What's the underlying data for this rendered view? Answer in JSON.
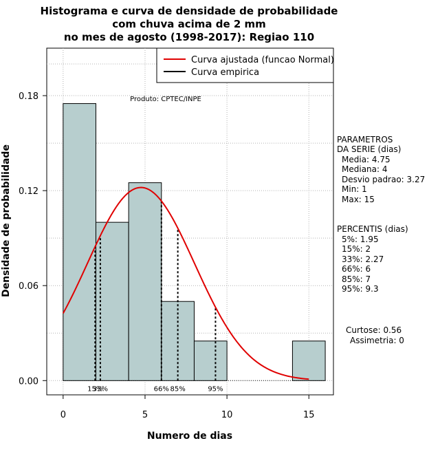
{
  "chart_data": {
    "type": "bar",
    "title_lines": [
      "Histograma e curva de densidade de probabilidade",
      "com chuva acima de 2 mm",
      "no mes de agosto (1998-2017): Regiao 110"
    ],
    "xlabel": "Numero de dias",
    "ylabel": "Densidade de probabilidade",
    "xlim": [
      -1,
      16.5
    ],
    "ylim": [
      -0.009,
      0.21
    ],
    "x_ticks": [
      0,
      5,
      10,
      15
    ],
    "y_ticks": [
      0.0,
      0.06,
      0.12,
      0.18
    ],
    "y_tick_labels": [
      "0.00",
      "0.06",
      "0.12",
      "0.18"
    ],
    "grid": true,
    "bins": [
      {
        "from": 0,
        "to": 2,
        "density": 0.175
      },
      {
        "from": 2,
        "to": 4,
        "density": 0.1
      },
      {
        "from": 4,
        "to": 6,
        "density": 0.125
      },
      {
        "from": 6,
        "to": 8,
        "density": 0.05
      },
      {
        "from": 8,
        "to": 10,
        "density": 0.025
      },
      {
        "from": 10,
        "to": 12,
        "density": 0
      },
      {
        "from": 12,
        "to": 14,
        "density": 0
      },
      {
        "from": 14,
        "to": 16,
        "density": 0.025
      }
    ],
    "bar_color": "#b7cece",
    "normal_curve": {
      "mean": 4.75,
      "sd": 3.27,
      "from": 0,
      "to": 15,
      "color": "#e00000"
    },
    "percentile_lines": [
      {
        "x": 1.95,
        "label": "15%"
      },
      {
        "x": 2.27,
        "label": "33%"
      },
      {
        "x": 6,
        "label": "66%"
      },
      {
        "x": 7,
        "label": "85%"
      },
      {
        "x": 9.3,
        "label": "95%"
      }
    ],
    "legend": [
      {
        "label": "Curva ajustada (funcao Normal)",
        "color": "#e00000"
      },
      {
        "label": "Curva empirica",
        "color": "#000000"
      }
    ],
    "product_note": "Produto: CPTEC/INPE"
  },
  "side_panel": {
    "params_title_1": "PARAMETROS",
    "params_title_2": "DA SERIE (dias)",
    "media": "Media: 4.75",
    "mediana": "Mediana: 4",
    "desvio": "Desvio padrao: 3.27",
    "min": "Min: 1",
    "max": "Max: 15",
    "percentis_title": "PERCENTIS (dias)",
    "p5": "5%: 1.95",
    "p15": "15%: 2",
    "p33": "33%: 2.27",
    "p66": "66%: 6",
    "p85": "85%: 7",
    "p95": "95%: 9.3",
    "curtose": "Curtose: 0.56",
    "assimetria": "Assimetria: 0"
  }
}
